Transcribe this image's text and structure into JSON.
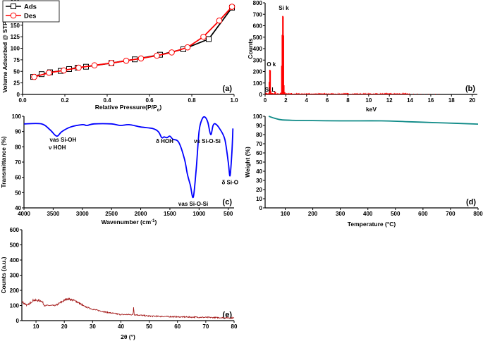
{
  "chart_data": [
    {
      "id": "a",
      "type": "line",
      "panel_label": "(a)",
      "xlabel": "Relative Pressure(P/P",
      "xlabel_sub": "o",
      "xlabel_end": ")",
      "ylabel": "Volume Adsorbed @ STP (cc/g)",
      "xlim": [
        0,
        1.0
      ],
      "ylim": [
        0,
        200
      ],
      "xticks": [
        0.0,
        0.2,
        0.4,
        0.6,
        0.8,
        1.0
      ],
      "xtick_labels": [
        "0.0",
        "0.2",
        "0.4",
        "0.6",
        "0.8",
        "1.0"
      ],
      "yticks": [
        0,
        25,
        50,
        75,
        100,
        125,
        150,
        175,
        200
      ],
      "legend_position": "top-left",
      "series": [
        {
          "name": "Ads",
          "color": "#000000",
          "marker": "square",
          "x": [
            0.05,
            0.09,
            0.13,
            0.18,
            0.22,
            0.26,
            0.3,
            0.42,
            0.53,
            0.65,
            0.76,
            0.88,
            0.99
          ],
          "y": [
            38,
            44,
            48,
            51,
            55,
            58,
            60,
            68,
            76,
            86,
            98,
            120,
            188
          ]
        },
        {
          "name": "Des",
          "color": "#ff0000",
          "marker": "circle",
          "x": [
            0.055,
            0.125,
            0.195,
            0.265,
            0.34,
            0.42,
            0.49,
            0.56,
            0.635,
            0.705,
            0.78,
            0.855,
            0.93,
            0.99
          ],
          "y": [
            38,
            47,
            52,
            58,
            63,
            68,
            73,
            78,
            84,
            91,
            102,
            125,
            160,
            190
          ]
        }
      ]
    },
    {
      "id": "b",
      "type": "bar",
      "panel_label": "(b)",
      "xlabel": "keV",
      "ylabel": "Counts",
      "xlim": [
        0,
        20.5
      ],
      "ylim": [
        0,
        800
      ],
      "xticks": [
        0,
        2,
        4,
        6,
        8,
        10,
        12,
        14,
        16,
        18,
        20
      ],
      "yticks": [
        0,
        100,
        200,
        300,
        400,
        500,
        600,
        700,
        800
      ],
      "color": "#ff0000",
      "series": [
        {
          "name": "EDS spectrum",
          "x": [
            0.1,
            0.2,
            0.4,
            0.45,
            0.5,
            0.55,
            0.7,
            0.95,
            1.0,
            1.5,
            1.6,
            1.65,
            1.7,
            1.74,
            1.78,
            1.82,
            1.9,
            2.5,
            4,
            8,
            12,
            13.7
          ],
          "y": [
            15,
            10,
            110,
            215,
            210,
            30,
            12,
            25,
            20,
            15,
            250,
            520,
            685,
            680,
            515,
            80,
            20,
            12,
            10,
            12,
            10,
            8
          ]
        }
      ],
      "annotations": [
        {
          "text": "Si k",
          "x": 1.8,
          "y": 740
        },
        {
          "text": "O k",
          "x": 0.6,
          "y": 245
        },
        {
          "text": "Si L",
          "x": 0.2,
          "y": 25
        }
      ]
    },
    {
      "id": "c",
      "type": "line",
      "panel_label": "(c)",
      "xlabel": "Wavenumber (cm",
      "xlabel_sup": "-1",
      "xlabel_end": ")",
      "ylabel": "Transmittance (%)",
      "xlim": [
        4000,
        400
      ],
      "ylim": [
        40,
        100
      ],
      "xticks": [
        4000,
        3500,
        3000,
        2500,
        2000,
        1500,
        1000,
        500
      ],
      "yticks": [
        40,
        50,
        60,
        70,
        80,
        90,
        100
      ],
      "color": "#0000ff",
      "series": [
        {
          "name": "FTIR",
          "x": [
            4000,
            3700,
            3550,
            3440,
            3350,
            3200,
            3000,
            2920,
            2800,
            2500,
            2350,
            2200,
            2000,
            1800,
            1700,
            1640,
            1600,
            1550,
            1500,
            1450,
            1350,
            1250,
            1200,
            1150,
            1100,
            1050,
            1000,
            950,
            900,
            850,
            800,
            760,
            720,
            650,
            560,
            500,
            470,
            440,
            420
          ],
          "y": [
            95,
            95,
            91,
            87,
            90,
            93,
            94.5,
            94,
            95,
            95,
            94,
            94.5,
            93,
            92,
            90,
            86,
            86.5,
            86,
            87,
            85,
            83,
            72,
            62,
            55,
            47,
            65,
            90,
            98,
            99.5,
            96,
            88,
            94,
            95,
            92,
            85,
            70,
            61,
            75,
            92
          ]
        }
      ],
      "annotations": [
        {
          "text": "νas Si-OH",
          "x": 3500,
          "y": 83.5
        },
        {
          "text": "ν HOH",
          "x": 3430,
          "y": 81.5
        },
        {
          "text": "δ HOH",
          "x": 1590,
          "y": 82.5
        },
        {
          "text": "νs Si-O-Si",
          "x": 860,
          "y": 82.5
        },
        {
          "text": "δ Si-O",
          "x": 470,
          "y": 55.5
        },
        {
          "text": "νas Si-O-Si",
          "x": 1100,
          "y": 41.5
        }
      ]
    },
    {
      "id": "d",
      "type": "line",
      "panel_label": "(d)",
      "xlabel": "Temperature (°C)",
      "ylabel": "Weight (%)",
      "xlim": [
        27,
        800
      ],
      "ylim": [
        0,
        100
      ],
      "xticks": [
        100,
        200,
        300,
        400,
        500,
        600,
        700,
        800
      ],
      "yticks": [
        0,
        10,
        20,
        30,
        40,
        50,
        60,
        70,
        80,
        90,
        100
      ],
      "color": "#0e8a87",
      "series": [
        {
          "name": "TGA",
          "x": [
            40,
            60,
            90,
            150,
            300,
            450,
            550,
            650,
            800
          ],
          "y": [
            100,
            98,
            96,
            95.5,
            95,
            95,
            94,
            93,
            91.5
          ]
        }
      ]
    },
    {
      "id": "e",
      "type": "line",
      "panel_label": "(e)",
      "xlabel": "2θ (°)",
      "ylabel": "Counts (a.u.)",
      "xlim": [
        5,
        80
      ],
      "ylim": [
        0,
        600
      ],
      "xticks": [
        10,
        20,
        30,
        40,
        50,
        60,
        70,
        80
      ],
      "yticks": [
        0,
        100,
        200,
        300,
        400,
        500,
        600
      ],
      "color": "#a01010",
      "series": [
        {
          "name": "XRD",
          "x": [
            5,
            7,
            9,
            12,
            13,
            17,
            21,
            24,
            27,
            30,
            35,
            40,
            44.3,
            44.5,
            44.7,
            50,
            60,
            80
          ],
          "y": [
            125,
            100,
            135,
            130,
            100,
            100,
            145,
            130,
            95,
            75,
            55,
            40,
            40,
            95,
            40,
            30,
            25,
            18
          ]
        }
      ]
    }
  ]
}
